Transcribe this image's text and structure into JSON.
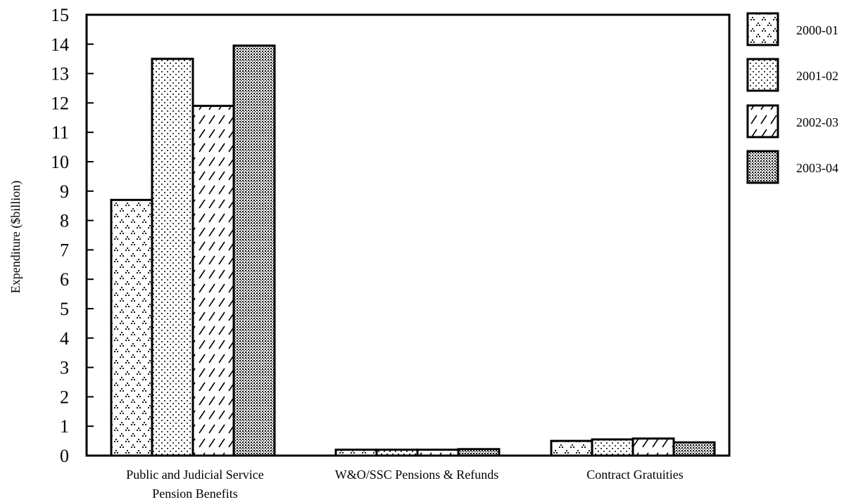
{
  "chart_data": {
    "type": "bar",
    "title": "",
    "xlabel": "",
    "ylabel": "Expenditure ($billion)",
    "ylim": [
      0,
      15
    ],
    "yticks": [
      0,
      1,
      2,
      3,
      4,
      5,
      6,
      7,
      8,
      9,
      10,
      11,
      12,
      13,
      14,
      15
    ],
    "categories": [
      [
        "Public and Judicial Service",
        "Pension Benefits"
      ],
      [
        "W&O/SSC Pensions & Refunds"
      ],
      [
        "Contract Gratuities"
      ]
    ],
    "series": [
      {
        "name": "2000-01",
        "pattern": "triangle-dots",
        "values": [
          8.7,
          0.2,
          0.5
        ]
      },
      {
        "name": "2001-02",
        "pattern": "sparse-dots",
        "values": [
          13.5,
          0.2,
          0.55
        ]
      },
      {
        "name": "2002-03",
        "pattern": "diagonal-hatch",
        "values": [
          11.9,
          0.2,
          0.58
        ]
      },
      {
        "name": "2003-04",
        "pattern": "dense-checker",
        "values": [
          13.95,
          0.22,
          0.45
        ]
      }
    ],
    "legend_position": "right",
    "grid": false,
    "colors": {
      "ink": "#000000",
      "background": "#ffffff"
    }
  }
}
